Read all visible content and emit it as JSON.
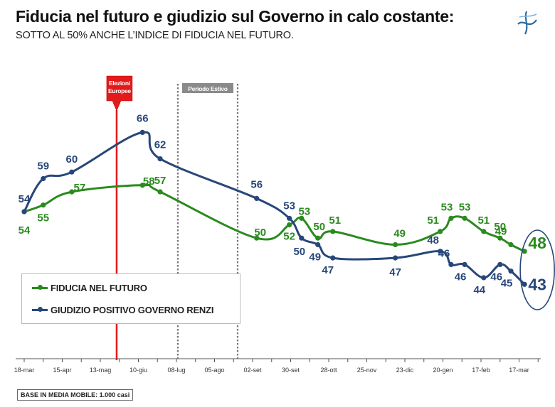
{
  "header": {
    "title": "Fiducia nel futuro e giudizio sul Governo in calo costante:",
    "subtitle": "SOTTO AL 50% ANCHE L’INDICE DI FIDUCIA NEL FUTURO."
  },
  "footer": {
    "base_note": "BASE IN MEDIA MOBILE: 1.000 casi"
  },
  "colors": {
    "fiducia": "#2a8a1e",
    "governo": "#27477a",
    "election_line": "#e21a1a",
    "summer_box": "#8a8a8a"
  },
  "chart_data": {
    "type": "line",
    "x_tick_labels": [
      "18-mar",
      "15-apr",
      "13-mag",
      "10-giu",
      "08-lug",
      "05-ago",
      "02-set",
      "30-set",
      "28-ott",
      "25-nov",
      "23-dic",
      "20-gen",
      "17-feb",
      "17-mar"
    ],
    "ylim": [
      0,
      75
    ],
    "grid": false,
    "legend_position": "bottom-left",
    "series": [
      {
        "name": "FIDUCIA NEL FUTURO",
        "key": "fiducia",
        "points": [
          {
            "x": "18-mar",
            "y": 54
          },
          {
            "x": "01-apr",
            "y": 55
          },
          {
            "x": "22-apr",
            "y": 57
          },
          {
            "x": "13-giu",
            "y": 58
          },
          {
            "x": "26-giu",
            "y": 57
          },
          {
            "x": "05-set",
            "y": 50
          },
          {
            "x": "29-set",
            "y": 52
          },
          {
            "x": "08-ott",
            "y": 53
          },
          {
            "x": "20-ott",
            "y": 50
          },
          {
            "x": "31-ott",
            "y": 51
          },
          {
            "x": "16-dic",
            "y": 49
          },
          {
            "x": "18-gen",
            "y": 51
          },
          {
            "x": "26-gen",
            "y": 53
          },
          {
            "x": "05-feb",
            "y": 53
          },
          {
            "x": "19-feb",
            "y": 51
          },
          {
            "x": "03-mar",
            "y": 50
          },
          {
            "x": "11-mar",
            "y": 49
          },
          {
            "x": "21-mar",
            "y": 48
          }
        ]
      },
      {
        "name": "GIUDIZIO POSITIVO GOVERNO RENZI",
        "key": "governo",
        "points": [
          {
            "x": "18-mar",
            "y": 54
          },
          {
            "x": "01-apr",
            "y": 59
          },
          {
            "x": "22-apr",
            "y": 60
          },
          {
            "x": "13-giu",
            "y": 66
          },
          {
            "x": "26-giu",
            "y": 62
          },
          {
            "x": "05-set",
            "y": 56
          },
          {
            "x": "29-set",
            "y": 53
          },
          {
            "x": "08-ott",
            "y": 50
          },
          {
            "x": "20-ott",
            "y": 49
          },
          {
            "x": "31-ott",
            "y": 47
          },
          {
            "x": "16-dic",
            "y": 47
          },
          {
            "x": "18-gen",
            "y": 48
          },
          {
            "x": "26-gen",
            "y": 46
          },
          {
            "x": "05-feb",
            "y": 46
          },
          {
            "x": "19-feb",
            "y": 44
          },
          {
            "x": "03-mar",
            "y": 46
          },
          {
            "x": "11-mar",
            "y": 45
          },
          {
            "x": "21-mar",
            "y": 43
          }
        ]
      }
    ],
    "annotations": [
      {
        "type": "vline",
        "label": "Elezioni Europee",
        "x": "25-mag"
      },
      {
        "type": "period",
        "label": "Periodo Estivo",
        "x_start": "09-lug",
        "x_end": "22-ago"
      }
    ],
    "highlight": {
      "fiducia_last": "48",
      "governo_last": "43"
    }
  }
}
